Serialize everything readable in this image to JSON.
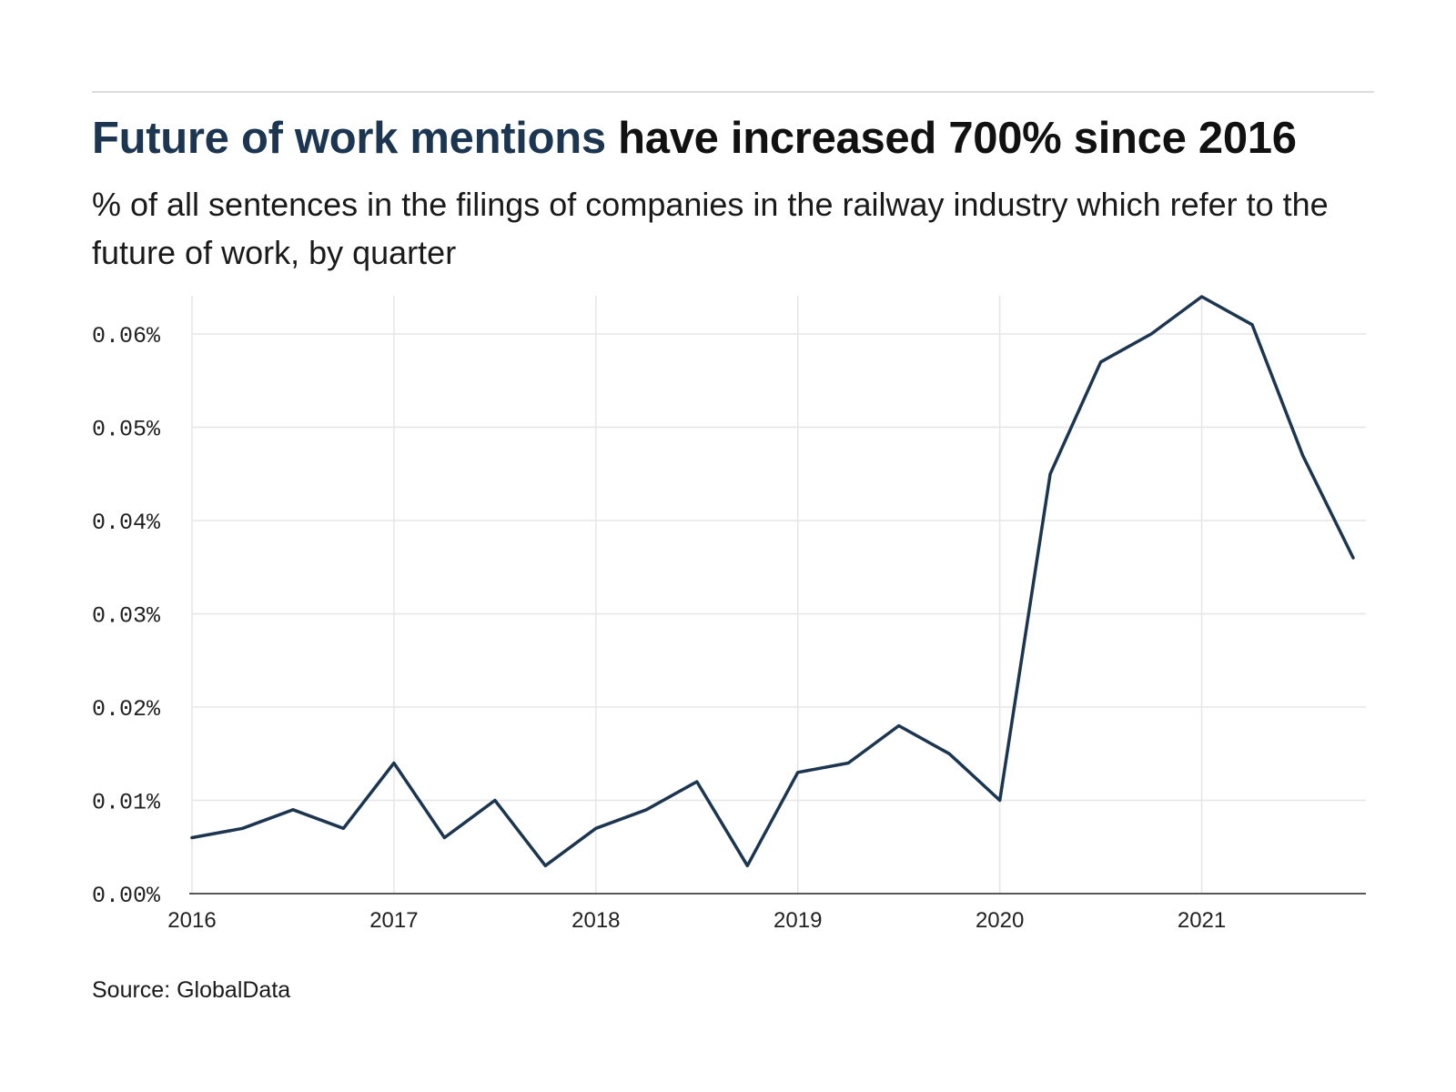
{
  "header": {
    "title_accent": "Future of work mentions",
    "title_rest": " have increased 700% since 2016",
    "subtitle": "% of all sentences in the filings of companies in the railway industry which refer to the future of work, by quarter"
  },
  "footer": {
    "source": "Source: GlobalData"
  },
  "colors": {
    "line": "#1c3550",
    "accent": "#1c3550",
    "grid": "#e6e6e6",
    "axis": "#222222"
  },
  "chart_data": {
    "type": "line",
    "title": "",
    "xlabel": "",
    "ylabel": "",
    "x": [
      2016.0,
      2016.25,
      2016.5,
      2016.75,
      2017.0,
      2017.25,
      2017.5,
      2017.75,
      2018.0,
      2018.25,
      2018.5,
      2018.75,
      2019.0,
      2019.25,
      2019.5,
      2019.75,
      2020.0,
      2020.25,
      2020.5,
      2020.75,
      2021.0,
      2021.25,
      2021.5,
      2021.75
    ],
    "series": [
      {
        "values": [
          0.006,
          0.007,
          0.009,
          0.007,
          0.014,
          0.006,
          0.01,
          0.003,
          0.007,
          0.009,
          0.012,
          0.003,
          0.013,
          0.014,
          0.018,
          0.015,
          0.01,
          0.045,
          0.057,
          0.06,
          0.064,
          0.061,
          0.047,
          0.036
        ]
      }
    ],
    "x_ticks": [
      {
        "value": 2016,
        "label": "2016"
      },
      {
        "value": 2017,
        "label": "2017"
      },
      {
        "value": 2018,
        "label": "2018"
      },
      {
        "value": 2019,
        "label": "2019"
      },
      {
        "value": 2020,
        "label": "2020"
      },
      {
        "value": 2021,
        "label": "2021"
      }
    ],
    "y_ticks": [
      {
        "value": 0.0,
        "label": "0.00%"
      },
      {
        "value": 0.01,
        "label": "0.01%"
      },
      {
        "value": 0.02,
        "label": "0.02%"
      },
      {
        "value": 0.03,
        "label": "0.03%"
      },
      {
        "value": 0.04,
        "label": "0.04%"
      },
      {
        "value": 0.05,
        "label": "0.05%"
      },
      {
        "value": 0.06,
        "label": "0.06%"
      }
    ],
    "xlim": [
      2016,
      2021.75
    ],
    "ylim": [
      0,
      0.064
    ],
    "grid": true,
    "legend": "none"
  }
}
